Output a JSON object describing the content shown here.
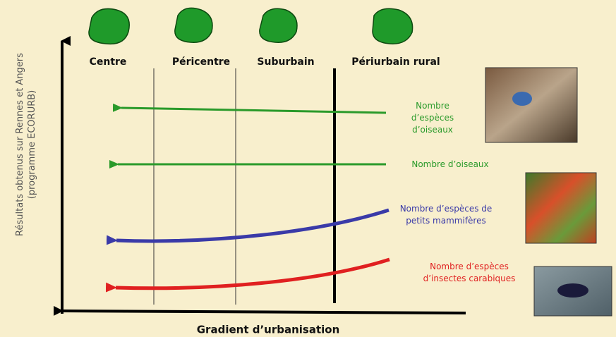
{
  "zones": [
    "Centre",
    "Péricentre",
    "Suburbain",
    "Périurbain rural"
  ],
  "y_axis_label": [
    "Résultats obtenus sur Rennes et Angers",
    "(programme ECORURB)"
  ],
  "x_axis_label": "Gradient d’urbanisation",
  "curves": [
    {
      "label": [
        "Nombre",
        "d’espèces",
        "d’oiseaux"
      ]
    },
    {
      "label": [
        "Nombre d’oiseaux"
      ]
    },
    {
      "label": [
        "Nombre d’espèces de",
        "petits mammifères"
      ]
    },
    {
      "label": [
        "Nombre d’espèces",
        "d’insectes carabiques"
      ]
    }
  ]
}
